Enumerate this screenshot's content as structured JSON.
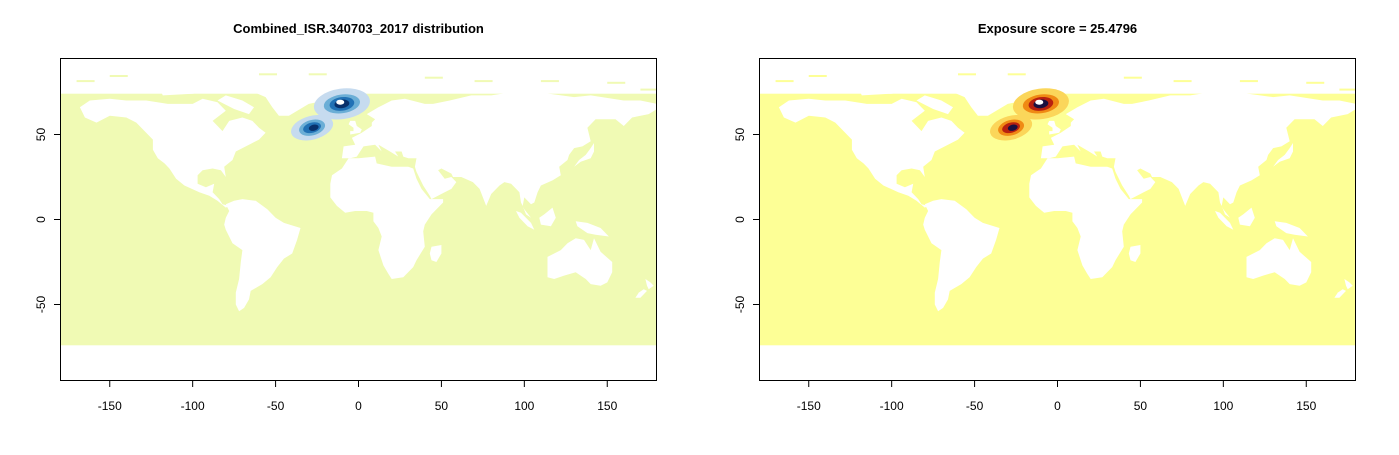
{
  "panels": [
    {
      "title": "Combined_ISR.340703_2017 distribution",
      "ocean_color": "#f0fab4",
      "land_color": "#ffffff",
      "hotspot_colors": [
        "#08306b",
        "#2171b5",
        "#6baed6",
        "#c6dbef"
      ]
    },
    {
      "title": "Exposure score = 25.4796",
      "ocean_color": "#fdff96",
      "land_color": "#ffffff",
      "hotspot_colors": [
        "#1a1040",
        "#b8200f",
        "#f08a14",
        "#fbd65a"
      ]
    }
  ],
  "axes": {
    "x_ticks": [
      "-150",
      "-100",
      "-50",
      "0",
      "50",
      "100",
      "150"
    ],
    "y_ticks": [
      "-50",
      "0",
      "50"
    ],
    "xlim": [
      -180,
      180
    ],
    "ylim": [
      -95,
      95
    ]
  }
}
